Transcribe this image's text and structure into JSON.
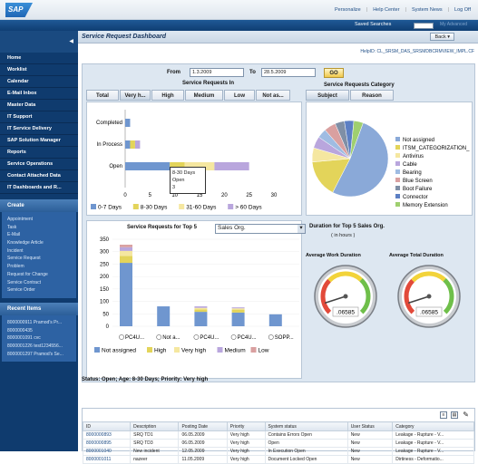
{
  "header": {
    "logo": "SAP",
    "links": [
      "Personalize",
      "Help Center",
      "System News",
      "Log Off"
    ],
    "saved_searches": "Saved Searches",
    "saved_favorites": "My Advanced"
  },
  "nav": {
    "items": [
      {
        "label": "Home",
        "arrow": false
      },
      {
        "label": "Worklist",
        "arrow": false
      },
      {
        "label": "Calendar",
        "arrow": false
      },
      {
        "label": "E-Mail Inbox",
        "arrow": false
      },
      {
        "label": "Master Data",
        "arrow": true
      },
      {
        "label": "IT Support",
        "arrow": true
      },
      {
        "label": "IT Service Delivery",
        "arrow": true
      },
      {
        "label": "SAP Solution Manager",
        "arrow": false
      },
      {
        "label": "Reports",
        "arrow": false
      },
      {
        "label": "Service Operations",
        "arrow": true
      },
      {
        "label": "Contact Attached Data",
        "arrow": false
      },
      {
        "label": "IT Dashboards and R...",
        "arrow": true
      }
    ],
    "create_title": "Create",
    "create_items": [
      "Appointment",
      "Task",
      "E-Mail",
      "Knowledge Article",
      "Incident",
      "Service Request",
      "Problem",
      "Request for Change",
      "Service Contract",
      "Service Order"
    ],
    "recent_title": "Recent Items",
    "recent_items": [
      "8000000911 Pramod's Pr...",
      "8000000435",
      "8000001091 cvc",
      "8000001226 test1234556...",
      "8000001297 Pramod's Se..."
    ]
  },
  "page": {
    "title": "Service Request Dashboard",
    "back_label": "Back",
    "help_id": "HelpID: CL_SRSM_DAS_SRSMDBCRMVIEW_IMPL.CF"
  },
  "filters": {
    "from_label": "From",
    "from_value": "1.3.2009",
    "to_label": "To",
    "to_value": "28.5.2009",
    "go_label": "GO"
  },
  "requests_in": {
    "title": "Service Requests In",
    "tabs": [
      "Total",
      "Very h...",
      "High",
      "Medium",
      "Low",
      "Not as..."
    ],
    "active_tab": 1,
    "tooltip": [
      "8-30 Days",
      "Open",
      "3"
    ]
  },
  "category": {
    "title": "Service Requests Category",
    "tabs": [
      "Subject",
      "Reason"
    ],
    "active_tab": 0
  },
  "top5": {
    "title": "Service Requests for Top 5",
    "select_value": "Sales Org.",
    "duration_title": "Duration for Top 5  Sales Org.",
    "duration_unit": "( in hours )",
    "gauges": [
      {
        "title": "Average Work Duration",
        "value": ".06585",
        "reading": 0.1
      },
      {
        "title": "Average Total Duration",
        "value": ".06585",
        "reading": 0.1
      }
    ]
  },
  "status_line": "Status: Open; Age: 8-30 Days; Priority: Very high",
  "table": {
    "columns": [
      "ID",
      "Description",
      "Posting Date",
      "Priority",
      "System status",
      "User Status",
      "Category"
    ],
    "rows": [
      [
        "8000000893",
        "SRQ TD1",
        "06.05.2009",
        "Very high",
        "Contains Errors Open",
        "New",
        "Leakage - Rupture - V..."
      ],
      [
        "8000000895",
        "SRQ TD3",
        "06.05.2009",
        "Very high",
        "Open",
        "New",
        "Leakage - Rupture - V..."
      ],
      [
        "8000001040",
        "New incident",
        "12.05.2009",
        "Very high",
        "In Execution Open",
        "New",
        "Leakage - Rupture - V..."
      ],
      [
        "8000001011",
        "nazeer",
        "11.05.2009",
        "Very high",
        "Document Locked Open",
        "New",
        "Dirtiness - Deformatio..."
      ]
    ]
  },
  "chart_data": [
    {
      "type": "bar",
      "orientation": "horizontal",
      "stacked": true,
      "categories": [
        "Completed",
        "In Process",
        "Open"
      ],
      "series": [
        {
          "name": "0-7 Days",
          "color": "#6f96cf",
          "values": [
            1,
            1,
            9
          ]
        },
        {
          "name": "8-30 Days",
          "color": "#e3d45a",
          "values": [
            0,
            1,
            3
          ]
        },
        {
          "name": "31-60 Days",
          "color": "#f5e7a0",
          "values": [
            0,
            0,
            6
          ]
        },
        {
          "name": "> 60 Days",
          "color": "#b9a6dd",
          "values": [
            0,
            1,
            7
          ]
        }
      ],
      "xticks": [
        "0",
        "5",
        "10",
        "15",
        "20",
        "25",
        "30"
      ],
      "xlim": [
        0,
        30
      ]
    },
    {
      "type": "pie",
      "series": [
        {
          "name": "Not assigned",
          "color": "#8aa9d8",
          "value": 52
        },
        {
          "name": "ITSM_CATEGORIZATION_",
          "color": "#e3d45a",
          "value": 16
        },
        {
          "name": "Antivirus",
          "color": "#f5e7a0",
          "value": 6
        },
        {
          "name": "Cable",
          "color": "#b9a6dd",
          "value": 5
        },
        {
          "name": "Bearing",
          "color": "#9fbce2",
          "value": 4
        },
        {
          "name": "Blue Screen",
          "color": "#d9a0a0",
          "value": 5
        },
        {
          "name": "Boot Failure",
          "color": "#7f8fa6",
          "value": 4
        },
        {
          "name": "Connector",
          "color": "#5c7fc4",
          "value": 4
        },
        {
          "name": "Memory Extension",
          "color": "#9fcf6f",
          "value": 4
        }
      ]
    },
    {
      "type": "bar",
      "stacked": true,
      "categories": [
        "PC4U...",
        "Not a...",
        "PC4U...",
        "PC4U...",
        "SOPP..."
      ],
      "yticks": [
        "0",
        "50",
        "100",
        "150",
        "200",
        "250",
        "300",
        "350"
      ],
      "ylim": [
        0,
        350
      ],
      "series": [
        {
          "name": "Not assigned",
          "color": "#6f96cf",
          "values": [
            255,
            80,
            58,
            55,
            48
          ]
        },
        {
          "name": "High",
          "color": "#e3d45a",
          "values": [
            28,
            0,
            10,
            12,
            0
          ]
        },
        {
          "name": "Very high",
          "color": "#f5e7a0",
          "values": [
            20,
            0,
            6,
            5,
            0
          ]
        },
        {
          "name": "Medium",
          "color": "#b9a6dd",
          "values": [
            15,
            0,
            6,
            4,
            0
          ]
        },
        {
          "name": "Low",
          "color": "#d9a0a0",
          "values": [
            10,
            0,
            0,
            0,
            0
          ]
        }
      ]
    }
  ]
}
